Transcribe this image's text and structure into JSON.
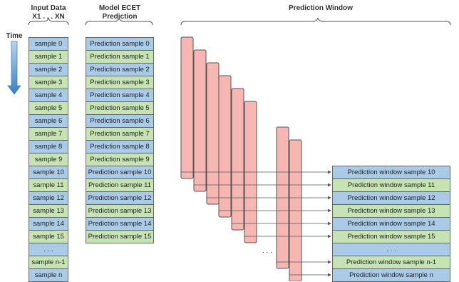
{
  "headers": {
    "input_title": "Input Data",
    "input_subtitle": "X1 . . . XN",
    "model_line1": "Model ECET",
    "model_line2": "Prediction",
    "window_title": "Prediction Window",
    "time_label": "Time"
  },
  "input_samples": [
    "sample 0",
    "sample 1",
    "sample 2",
    "sample 3",
    "sample 4",
    "sample 5",
    "sample 6",
    "sample 7",
    "sample 8",
    "sample 9",
    "sample 10",
    "sample 11",
    "sample 12",
    "sample 13",
    "sample 14",
    "sample 15",
    ". . .",
    "sample n-1",
    "sample n"
  ],
  "prediction_samples": [
    "Prediction sample 0",
    "Prediction sample 1",
    "Prediction sample 2",
    "Prediction sample 3",
    "Prediction sample 4",
    "Prediction sample 5",
    "Prediction sample 6",
    "Prediction sample 7",
    "Prediction sample 8",
    "Prediction sample 9",
    "Prediction sample 10",
    "Prediction sample 11",
    "Prediction sample 12",
    "Prediction sample 13",
    "Prediction sample 14",
    "Prediction sample 15"
  ],
  "window_samples": [
    "Prediction window sample 10",
    "Prediction window  sample 11",
    "Prediction window  sample 12",
    "Prediction window  sample 13",
    "Prediction window  sample 14",
    "Prediction window  sample 15",
    ". . .",
    "Prediction window  sample n-1",
    "Prediction window  sample n"
  ],
  "ellipsis": ". . .",
  "colors": {
    "blue": "#a9cbe8",
    "green": "#c6e3b4",
    "pink": "#f6b6b1",
    "arrow": "#3d7fc0"
  }
}
